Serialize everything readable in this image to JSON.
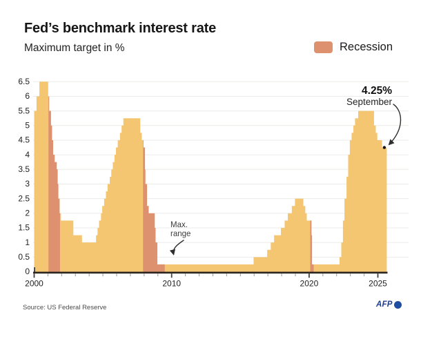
{
  "header": {
    "title": "Fed’s benchmark interest rate",
    "subtitle": "Maximum target in %"
  },
  "legend": {
    "recession_label": "Recession"
  },
  "chart_data": {
    "type": "area",
    "title": "Fed’s benchmark interest rate",
    "xlabel": "",
    "ylabel": "Maximum target in %",
    "x_range": [
      2000,
      2025.65
    ],
    "ylim": [
      0,
      6.5
    ],
    "grid": "horizontal",
    "legend_position": "top-right",
    "colors": {
      "area": "#f4c672",
      "recession": "#dd916e",
      "axis": "#2b2520",
      "grid": "#ebebe7",
      "tick_minor": "#9a968f",
      "tick_major": "#44403a",
      "text": "#222222"
    },
    "y_ticks": [
      0,
      0.5,
      1,
      1.5,
      2,
      2.5,
      3,
      3.5,
      4,
      4.5,
      5,
      5.5,
      6,
      6.5
    ],
    "y_tick_labels": [
      "0",
      "0.5",
      "1",
      "1.5",
      "2",
      "2.5",
      "3",
      "3.5",
      "4",
      "4.5",
      "5",
      "5.5",
      "6",
      "6.5"
    ],
    "x_ticks_major": [
      2000,
      2010,
      2020,
      2025
    ],
    "x_tick_labels": [
      "2000",
      "2010",
      "2020",
      "2025"
    ],
    "series": [
      {
        "name": "Maximum target",
        "points": [
          [
            2000.0,
            5.5
          ],
          [
            2000.17,
            6.0
          ],
          [
            2000.38,
            6.5
          ],
          [
            2001.02,
            6.0
          ],
          [
            2001.09,
            5.5
          ],
          [
            2001.22,
            5.0
          ],
          [
            2001.3,
            4.5
          ],
          [
            2001.38,
            4.0
          ],
          [
            2001.49,
            3.75
          ],
          [
            2001.64,
            3.5
          ],
          [
            2001.71,
            3.0
          ],
          [
            2001.76,
            2.5
          ],
          [
            2001.85,
            2.0
          ],
          [
            2001.95,
            1.75
          ],
          [
            2002.85,
            1.25
          ],
          [
            2003.48,
            1.0
          ],
          [
            2004.5,
            1.25
          ],
          [
            2004.61,
            1.5
          ],
          [
            2004.72,
            1.75
          ],
          [
            2004.86,
            2.0
          ],
          [
            2004.95,
            2.25
          ],
          [
            2005.09,
            2.5
          ],
          [
            2005.22,
            2.75
          ],
          [
            2005.34,
            3.0
          ],
          [
            2005.5,
            3.25
          ],
          [
            2005.61,
            3.5
          ],
          [
            2005.72,
            3.75
          ],
          [
            2005.84,
            4.0
          ],
          [
            2005.95,
            4.25
          ],
          [
            2006.08,
            4.5
          ],
          [
            2006.24,
            4.75
          ],
          [
            2006.36,
            5.0
          ],
          [
            2006.49,
            5.25
          ],
          [
            2007.72,
            4.75
          ],
          [
            2007.83,
            4.5
          ],
          [
            2007.95,
            4.25
          ],
          [
            2008.06,
            3.5
          ],
          [
            2008.09,
            3.0
          ],
          [
            2008.21,
            2.25
          ],
          [
            2008.33,
            2.0
          ],
          [
            2008.77,
            1.5
          ],
          [
            2008.83,
            1.0
          ],
          [
            2008.96,
            0.25
          ],
          [
            2015.96,
            0.5
          ],
          [
            2016.95,
            0.75
          ],
          [
            2017.21,
            1.0
          ],
          [
            2017.45,
            1.25
          ],
          [
            2017.95,
            1.5
          ],
          [
            2018.22,
            1.75
          ],
          [
            2018.45,
            2.0
          ],
          [
            2018.74,
            2.25
          ],
          [
            2018.97,
            2.5
          ],
          [
            2019.58,
            2.25
          ],
          [
            2019.72,
            2.0
          ],
          [
            2019.83,
            1.75
          ],
          [
            2020.17,
            1.25
          ],
          [
            2020.21,
            0.25
          ],
          [
            2022.21,
            0.5
          ],
          [
            2022.34,
            1.0
          ],
          [
            2022.46,
            1.75
          ],
          [
            2022.57,
            2.5
          ],
          [
            2022.72,
            3.25
          ],
          [
            2022.84,
            4.0
          ],
          [
            2022.96,
            4.5
          ],
          [
            2023.09,
            4.75
          ],
          [
            2023.22,
            5.0
          ],
          [
            2023.34,
            5.25
          ],
          [
            2023.57,
            5.5
          ],
          [
            2024.72,
            5.0
          ],
          [
            2024.85,
            4.75
          ],
          [
            2024.96,
            4.5
          ],
          [
            2025.3,
            4.25
          ]
        ]
      }
    ],
    "recessions": [
      [
        2001.04,
        2001.88
      ],
      [
        2007.92,
        2009.5
      ],
      [
        2020.08,
        2020.33
      ]
    ],
    "end_dot": {
      "t": 2025.47,
      "v": 4.25
    }
  },
  "annotations": {
    "max_range": {
      "line1": "Max.",
      "line2": "range"
    },
    "callout": {
      "value": "4.25%",
      "label": "September"
    }
  },
  "footer": {
    "source": "Source: US Federal Reserve",
    "brand": "AFP"
  }
}
